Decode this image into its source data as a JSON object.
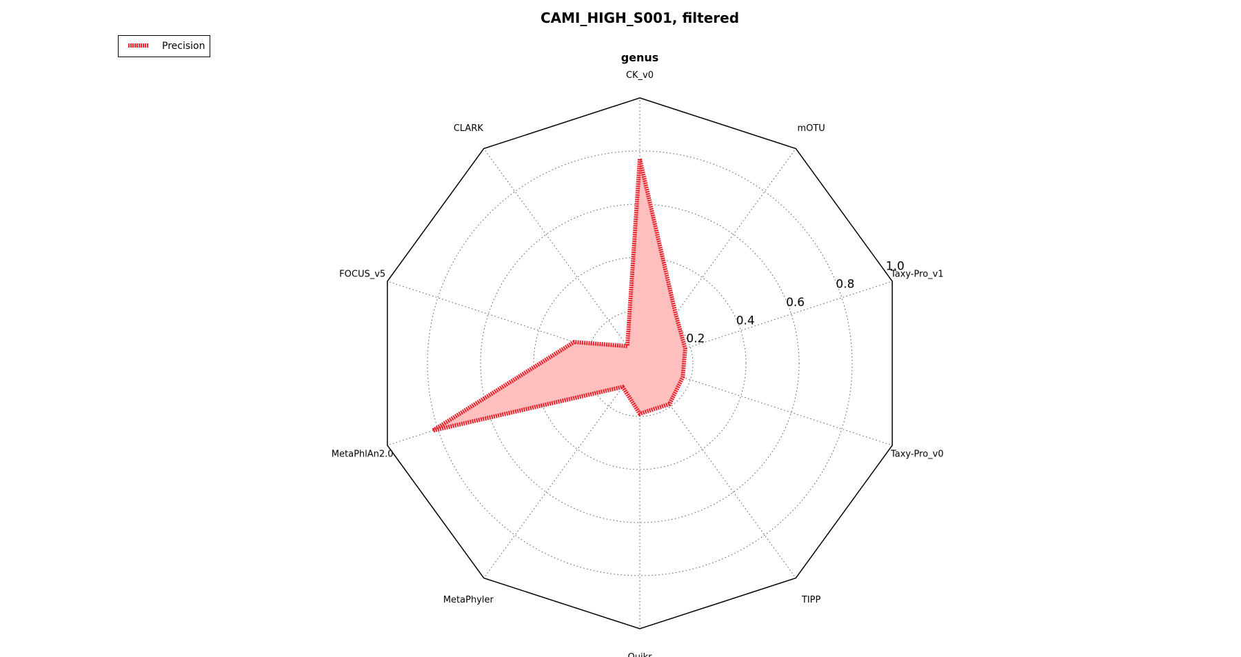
{
  "chart_data": {
    "type": "radar",
    "title": "CAMI_HIGH_S001, filtered",
    "subtitle": "genus",
    "categories": [
      "CK_v0",
      "mOTU",
      "Taxy-Pro_v1",
      "Taxy-Pro_v0",
      "TIPP",
      "Quikr",
      "MetaPhyler",
      "MetaPhlAn2.0",
      "FOCUS_v5",
      "CLARK"
    ],
    "series": [
      {
        "name": "Precision",
        "values": [
          0.77,
          0.23,
          0.18,
          0.17,
          0.19,
          0.19,
          0.11,
          0.82,
          0.26,
          0.08
        ],
        "color": "#e8202a",
        "fill": "#ffbfbf"
      }
    ],
    "rlim": [
      0,
      1.0
    ],
    "rticks": [
      0.2,
      0.4,
      0.6,
      0.8,
      1.0
    ],
    "rtick_labels": [
      "0.2",
      "0.4",
      "0.6",
      "0.8",
      "1.0"
    ],
    "grid": true,
    "legend_position": "top-left"
  }
}
